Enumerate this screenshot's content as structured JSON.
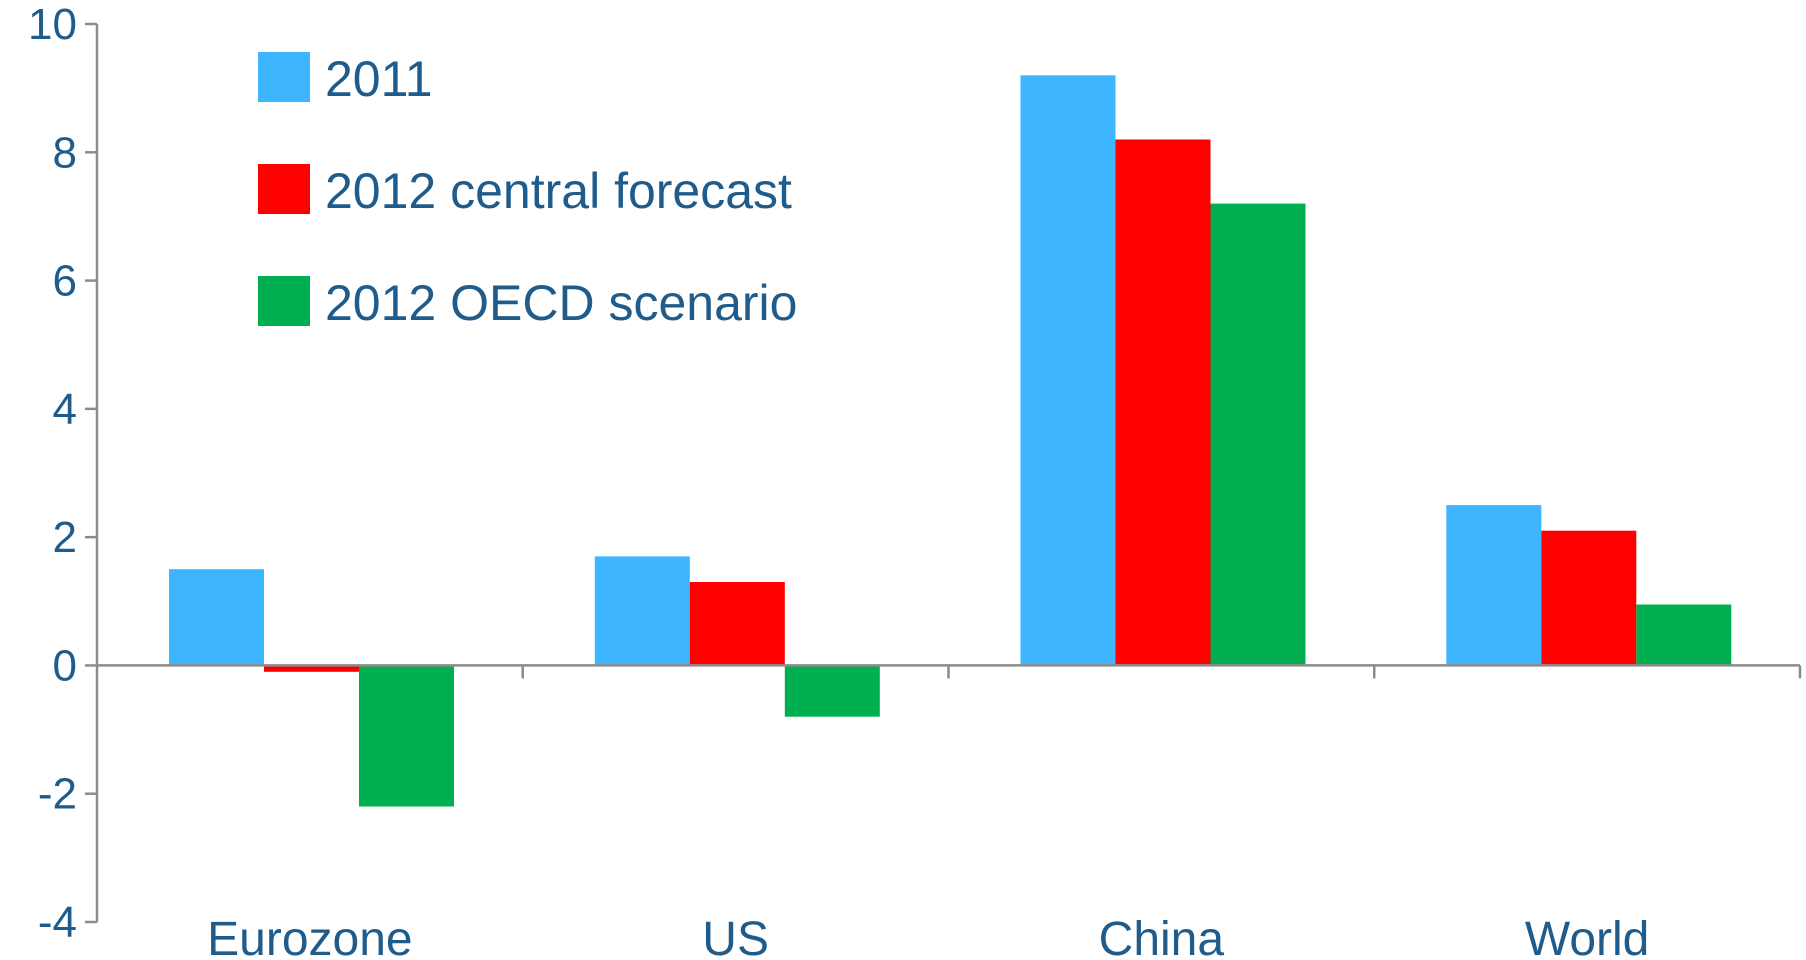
{
  "chart_data": {
    "type": "bar",
    "title": "",
    "xlabel": "",
    "ylabel": "",
    "categories": [
      "Eurozone",
      "US",
      "China",
      "World"
    ],
    "series": [
      {
        "name": "2011",
        "color": "#3db5ff",
        "values": [
          1.5,
          1.7,
          9.2,
          2.5
        ]
      },
      {
        "name": "2012 central forecast",
        "color": "#ff0000",
        "values": [
          -0.1,
          1.3,
          8.2,
          2.1
        ]
      },
      {
        "name": "2012 OECD scenario",
        "color": "#00b050",
        "values": [
          -2.2,
          -0.8,
          7.2,
          0.95
        ]
      }
    ],
    "ylim": [
      -4,
      10
    ],
    "yticks": [
      "-4",
      "-2",
      "0",
      "2",
      "4",
      "6",
      "8",
      "10"
    ],
    "grid": false,
    "legend_position": "top-left"
  }
}
